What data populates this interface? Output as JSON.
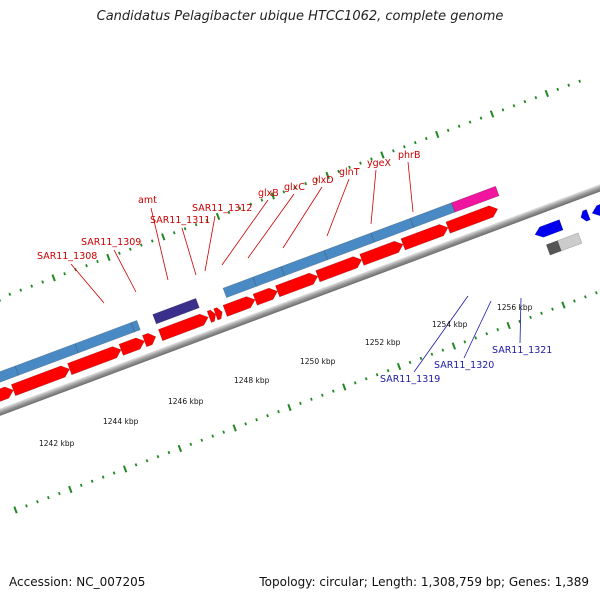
{
  "title": "Candidatus Pelagibacter ubique HTCC1062, complete genome",
  "accession": "Accession: NC_007205",
  "summary": "Topology: circular; Length: 1,308,759 bp; Genes: 1,389",
  "tick_labels": [
    "1242 kbp",
    "1244 kbp",
    "1246 kbp",
    "1248 kbp",
    "1250 kbp",
    "1252 kbp",
    "1254 kbp",
    "1256 kbp"
  ],
  "red_gene_labels": [
    "SAR11_1308",
    "SAR11_1309",
    "amt",
    "SAR11_1311",
    "SAR11_1312",
    "glxB",
    "glxC",
    "glxD",
    "glnT",
    "ygeX",
    "phrB"
  ],
  "blue_gene_labels": [
    "SAR11_1319",
    "SAR11_1320",
    "SAR11_1321"
  ],
  "colors": {
    "forward_cds": "#ff0000",
    "forward_gene": "#4a8ac4",
    "amt_gene": "#3b2f8c",
    "phrB_gene": "#f0149e",
    "reverse_cds": "#0000ee",
    "reverse_gene": "#555555",
    "label_red": "#cc0000",
    "label_blue": "#1a1aa8",
    "tick": "#228822"
  }
}
